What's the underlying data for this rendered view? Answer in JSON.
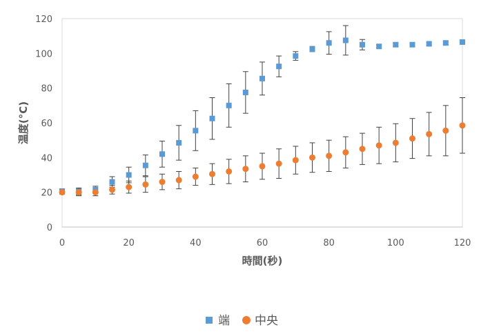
{
  "chart_data": {
    "type": "scatter",
    "xlabel": "時間(秒)",
    "ylabel": "温度(°C)",
    "xlim": [
      0,
      120
    ],
    "ylim": [
      0,
      120
    ],
    "xticks": [
      "0",
      "20",
      "40",
      "60",
      "80",
      "100",
      "120"
    ],
    "yticks": [
      "0",
      "20",
      "40",
      "60",
      "80",
      "100",
      "120"
    ],
    "grid": false,
    "legend": "bottom",
    "series": [
      {
        "name": "端",
        "marker": "square",
        "color": "#5B9BD5",
        "x": [
          0,
          5,
          10,
          15,
          20,
          25,
          30,
          35,
          40,
          45,
          50,
          55,
          60,
          65,
          70,
          75,
          80,
          85,
          90,
          95,
          100,
          105,
          110,
          115,
          120
        ],
        "y": [
          20.5,
          20.5,
          21.5,
          26,
          30,
          35.5,
          42,
          48.5,
          55.5,
          62.5,
          70,
          77.5,
          85.5,
          92.5,
          98.5,
          102.5,
          106,
          107.5,
          105,
          104,
          105,
          105,
          105.5,
          106,
          106.5
        ],
        "err": [
          1.5,
          2,
          2,
          3,
          4.5,
          6,
          7.5,
          10,
          11.5,
          12,
          12.5,
          12,
          9.5,
          6,
          2.5,
          1.5,
          6.5,
          8.5,
          3,
          1,
          1,
          1,
          1,
          1,
          1
        ]
      },
      {
        "name": "中央",
        "marker": "circle",
        "color": "#ED7D31",
        "x": [
          0,
          5,
          10,
          15,
          20,
          25,
          30,
          35,
          40,
          45,
          50,
          55,
          60,
          65,
          70,
          75,
          80,
          85,
          90,
          95,
          100,
          105,
          110,
          115,
          120
        ],
        "y": [
          20,
          20,
          20,
          21.5,
          23,
          24.5,
          26,
          27,
          29,
          30.5,
          32,
          33.5,
          35,
          36.5,
          38.5,
          40,
          41,
          43,
          45,
          47,
          48.5,
          51,
          53.5,
          55.5,
          58.5
        ],
        "err": [
          1,
          2,
          2,
          2.5,
          3.5,
          4.5,
          4.5,
          5,
          5,
          6,
          7,
          7.5,
          7.5,
          8.5,
          8,
          8.5,
          9,
          9,
          9,
          10.5,
          11,
          11.5,
          12.5,
          14.5,
          16
        ]
      }
    ]
  }
}
